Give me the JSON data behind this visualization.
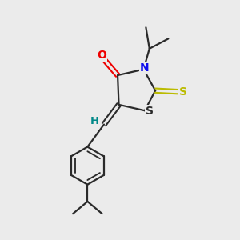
{
  "bg_color": "#ebebeb",
  "bond_color": "#2a2a2a",
  "atom_colors": {
    "O": "#ee0000",
    "N": "#1010ee",
    "S_thioxo": "#bbbb00",
    "S_ring": "#2a2a2a",
    "H": "#008888",
    "C": "#2a2a2a"
  },
  "figsize": [
    3.0,
    3.0
  ],
  "dpi": 100,
  "xlim": [
    0,
    10
  ],
  "ylim": [
    0,
    10
  ]
}
